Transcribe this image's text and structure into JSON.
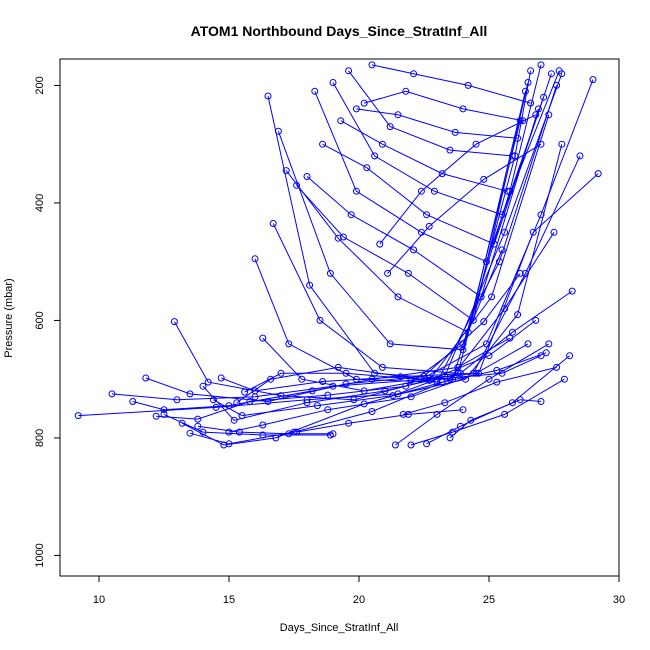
{
  "chart_data": {
    "type": "line",
    "title": "ATOM1 Northbound Days_Since_StratInf_All",
    "xlabel": "Days_Since_StratInf_All",
    "ylabel": "Pressure (mbar)",
    "xlim": [
      8.5,
      30
    ],
    "ylim": [
      1035,
      155
    ],
    "y_reversed": true,
    "x_ticks": [
      10,
      15,
      20,
      25,
      30
    ],
    "y_ticks": [
      200,
      400,
      600,
      800,
      1000
    ],
    "x_tick_labels": [
      "10",
      "15",
      "20",
      "25",
      "30"
    ],
    "y_tick_labels": [
      "200",
      "400",
      "600",
      "800",
      "1000"
    ],
    "grid": false,
    "legend": "none",
    "series_color": "#0000ff",
    "marker": "open-circle",
    "series": [
      {
        "x": [
          9.2,
          14.5,
          18.0,
          21.5,
          23.0,
          25.5,
          27.0
        ],
        "y": [
          762,
          748,
          735,
          725,
          700,
          690,
          660
        ]
      },
      {
        "x": [
          10.5,
          13.0,
          16.0,
          19.0,
          22.0,
          24.5,
          26.5
        ],
        "y": [
          725,
          735,
          730,
          712,
          702,
          690,
          640
        ]
      },
      {
        "x": [
          11.3,
          12.5,
          15.0,
          18.2,
          20.5,
          23.8,
          25.8
        ],
        "y": [
          738,
          752,
          745,
          720,
          700,
          680,
          630
        ]
      },
      {
        "x": [
          11.8,
          13.5,
          16.5,
          19.5,
          22.5,
          24.8,
          26.2
        ],
        "y": [
          698,
          725,
          738,
          708,
          695,
          602,
          520
        ]
      },
      {
        "x": [
          12.2,
          13.8,
          15.8,
          18.8,
          21.8,
          24.0,
          25.5
        ],
        "y": [
          763,
          768,
          738,
          727,
          712,
          640,
          480
        ]
      },
      {
        "x": [
          12.9,
          14.2,
          17.0,
          19.8,
          22.8,
          25.0,
          26.8
        ],
        "y": [
          602,
          705,
          728,
          735,
          700,
          660,
          600
        ]
      },
      {
        "x": [
          13.2,
          14.8,
          16.8,
          20.2,
          23.2,
          25.3,
          27.2
        ],
        "y": [
          775,
          812,
          800,
          742,
          705,
          685,
          655
        ]
      },
      {
        "x": [
          13.5,
          15.0,
          17.5,
          20.5,
          23.5,
          25.6,
          27.5
        ],
        "y": [
          792,
          810,
          790,
          755,
          700,
          580,
          450
        ]
      },
      {
        "x": [
          14.0,
          15.2,
          18.0,
          21.0,
          23.9,
          25.9,
          28.2
        ],
        "y": [
          712,
          770,
          740,
          720,
          690,
          620,
          550
        ]
      },
      {
        "x": [
          14.4,
          15.5,
          18.4,
          21.3,
          24.1,
          26.1,
          27.8
        ],
        "y": [
          735,
          762,
          745,
          728,
          700,
          590,
          300
        ]
      },
      {
        "x": [
          14.7,
          16.0,
          18.6,
          21.6,
          24.4,
          26.4,
          28.5
        ],
        "y": [
          698,
          720,
          704,
          696,
          690,
          520,
          320
        ]
      },
      {
        "x": [
          15.0,
          16.3,
          18.8,
          22.0,
          24.6,
          26.7,
          29.2
        ],
        "y": [
          790,
          778,
          752,
          730,
          690,
          450,
          350
        ]
      },
      {
        "x": [
          15.3,
          16.6,
          19.2,
          22.4,
          24.9,
          27.0,
          29.0
        ],
        "y": [
          740,
          700,
          680,
          700,
          640,
          420,
          190
        ]
      },
      {
        "x": [
          15.6,
          17.0,
          19.5,
          22.7,
          25.1,
          27.3
        ],
        "y": [
          722,
          690,
          690,
          702,
          560,
          250
        ]
      },
      {
        "x": [
          16.0,
          17.3,
          19.9,
          23.0,
          25.4,
          27.6
        ],
        "y": [
          495,
          640,
          700,
          705,
          500,
          200
        ]
      },
      {
        "x": [
          16.3,
          17.8,
          20.2,
          23.3,
          25.6,
          27.8
        ],
        "y": [
          630,
          700,
          720,
          695,
          450,
          180
        ]
      },
      {
        "x": [
          16.5,
          18.1,
          20.6,
          23.6,
          25.8,
          27.0
        ],
        "y": [
          218,
          540,
          690,
          700,
          380,
          165
        ]
      },
      {
        "x": [
          16.7,
          18.5,
          20.9,
          23.8,
          26.0,
          26.6
        ],
        "y": [
          435,
          600,
          680,
          690,
          320,
          175
        ]
      },
      {
        "x": [
          16.9,
          18.9,
          21.2,
          24.0,
          26.2
        ],
        "y": [
          278,
          520,
          640,
          650,
          260
        ]
      },
      {
        "x": [
          17.2,
          19.2,
          21.5,
          24.2,
          26.4
        ],
        "y": [
          345,
          460,
          560,
          620,
          210
        ]
      },
      {
        "x": [
          17.6,
          19.4,
          21.9,
          24.4,
          26.5
        ],
        "y": [
          370,
          458,
          520,
          600,
          195
        ]
      },
      {
        "x": [
          18.0,
          19.7,
          22.1,
          24.7,
          26.9
        ],
        "y": [
          355,
          420,
          480,
          560,
          240
        ]
      },
      {
        "x": [
          18.3,
          19.9,
          22.4,
          24.9,
          27.1
        ],
        "y": [
          210,
          380,
          450,
          500,
          220
        ]
      },
      {
        "x": [
          18.6,
          20.3,
          22.6,
          25.2,
          27.4
        ],
        "y": [
          300,
          340,
          420,
          470,
          180
        ]
      },
      {
        "x": [
          19.0,
          20.6,
          22.9,
          25.5,
          27.7
        ],
        "y": [
          195,
          320,
          380,
          420,
          175
        ]
      },
      {
        "x": [
          19.3,
          20.9,
          23.2,
          25.7
        ],
        "y": [
          260,
          300,
          350,
          380
        ]
      },
      {
        "x": [
          19.6,
          21.2,
          23.5,
          25.9
        ],
        "y": [
          175,
          270,
          310,
          320
        ]
      },
      {
        "x": [
          19.9,
          21.5,
          23.7,
          26.1
        ],
        "y": [
          240,
          250,
          280,
          290
        ]
      },
      {
        "x": [
          20.2,
          21.8,
          24.0,
          26.3
        ],
        "y": [
          230,
          210,
          240,
          260
        ]
      },
      {
        "x": [
          20.5,
          22.1,
          24.2,
          26.6
        ],
        "y": [
          165,
          180,
          200,
          230
        ]
      },
      {
        "x": [
          20.8,
          22.4,
          24.5,
          26.8
        ],
        "y": [
          470,
          380,
          300,
          250
        ]
      },
      {
        "x": [
          21.1,
          22.7,
          24.8,
          27.0
        ],
        "y": [
          520,
          440,
          360,
          300
        ]
      },
      {
        "x": [
          21.4,
          23.0,
          25.0,
          27.3
        ],
        "y": [
          812,
          760,
          700,
          640
        ]
      },
      {
        "x": [
          21.7,
          23.3,
          25.3,
          27.6
        ],
        "y": [
          760,
          740,
          705,
          680
        ]
      },
      {
        "x": [
          22.0,
          23.6,
          25.6,
          27.9
        ],
        "y": [
          812,
          790,
          760,
          700
        ]
      },
      {
        "x": [
          22.6,
          23.9,
          25.9,
          28.1
        ],
        "y": [
          810,
          780,
          740,
          660
        ]
      },
      {
        "x": [
          23.5,
          24.3,
          26.2,
          27.0
        ],
        "y": [
          800,
          770,
          735,
          738
        ]
      },
      {
        "x": [
          12.5,
          14.0,
          16.3,
          18.9
        ],
        "y": [
          760,
          790,
          795,
          795
        ]
      },
      {
        "x": [
          13.8,
          15.4,
          17.3,
          19.0
        ],
        "y": [
          780,
          790,
          793,
          793
        ]
      },
      {
        "x": [
          17.6,
          19.6,
          21.9,
          24.0
        ],
        "y": [
          790,
          775,
          760,
          752
        ]
      }
    ]
  }
}
